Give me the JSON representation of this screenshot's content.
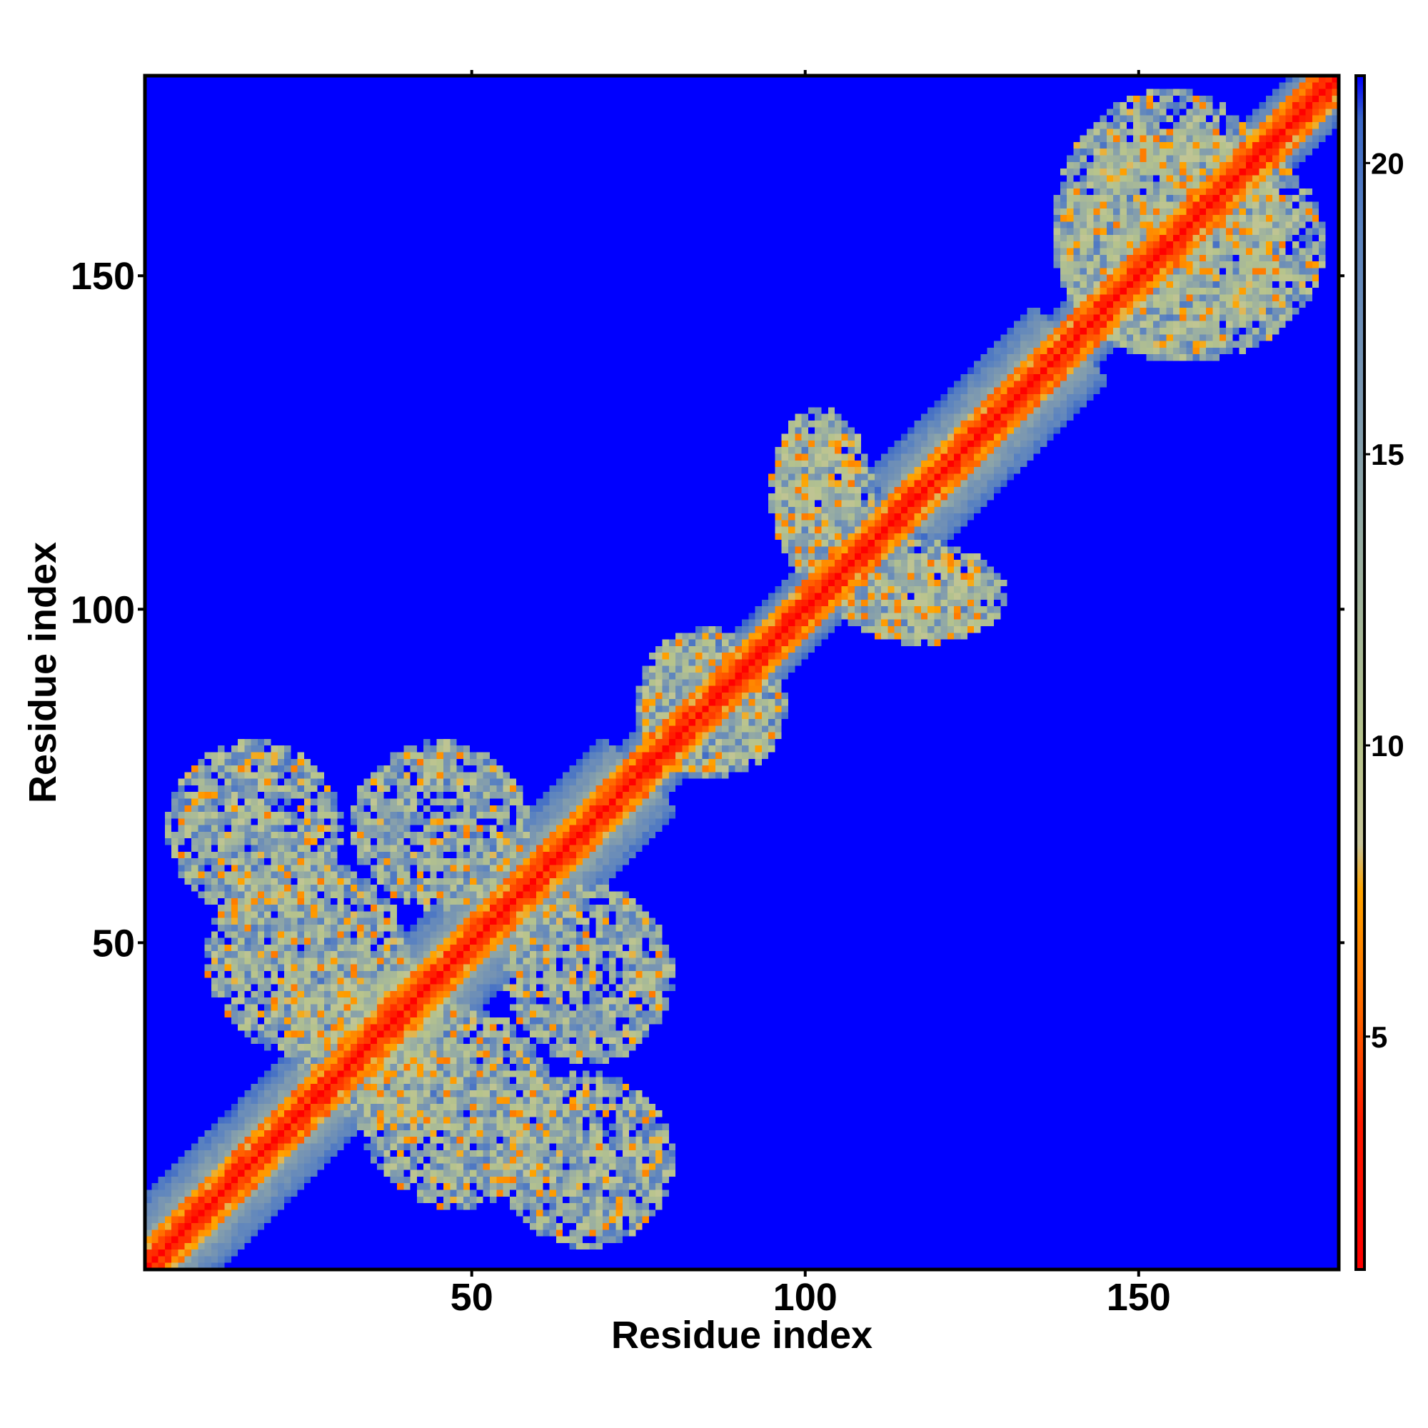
{
  "chart_data": {
    "type": "heatmap",
    "title": "",
    "xlabel": "Residue index",
    "ylabel": "Residue index",
    "xlim": [
      1,
      180
    ],
    "ylim": [
      1,
      180
    ],
    "x_ticks": [
      50,
      100,
      150
    ],
    "y_ticks": [
      50,
      100,
      150
    ],
    "colorbar": {
      "range": [
        1,
        21.5
      ],
      "ticks": [
        5,
        10,
        15,
        20
      ],
      "stops": [
        {
          "value": 1,
          "color": "#ff0000"
        },
        {
          "value": 3.5,
          "color": "#ff1a00"
        },
        {
          "value": 5.5,
          "color": "#ff6a00"
        },
        {
          "value": 7.5,
          "color": "#ffa500"
        },
        {
          "value": 8.3,
          "color": "#c8c59a"
        },
        {
          "value": 10,
          "color": "#b7c48c"
        },
        {
          "value": 13,
          "color": "#9db1a0"
        },
        {
          "value": 16,
          "color": "#7c98b0"
        },
        {
          "value": 19,
          "color": "#5a82c0"
        },
        {
          "value": 20.8,
          "color": "#3b67c8"
        },
        {
          "value": 21.5,
          "color": "#0000ff"
        }
      ]
    },
    "background_value": 21.5,
    "structure": {
      "diagonal": true,
      "helix_band_segments": [
        [
          1,
          28
        ],
        [
          33,
          75
        ],
        [
          115,
          140
        ]
      ],
      "beta_antidiagonal_contacts": [
        {
          "x_range": [
            4,
            30
          ],
          "y_range": [
            54,
            80
          ]
        },
        {
          "x_range": [
            33,
            62
          ],
          "y_range": [
            10,
            40
          ]
        },
        {
          "x_range": [
            55,
            80
          ],
          "y_range": [
            32,
            58
          ]
        },
        {
          "x_range": [
            20,
            45
          ],
          "y_range": [
            28,
            50
          ]
        },
        {
          "x_range": [
            75,
            95
          ],
          "y_range": [
            75,
            97
          ]
        },
        {
          "x_range": [
            95,
            108
          ],
          "y_range": [
            105,
            130
          ]
        },
        {
          "x_range": [
            105,
            130
          ],
          "y_range": [
            95,
            110
          ]
        },
        {
          "x_range": [
            138,
            172
          ],
          "y_range": [
            138,
            178
          ]
        }
      ]
    }
  }
}
